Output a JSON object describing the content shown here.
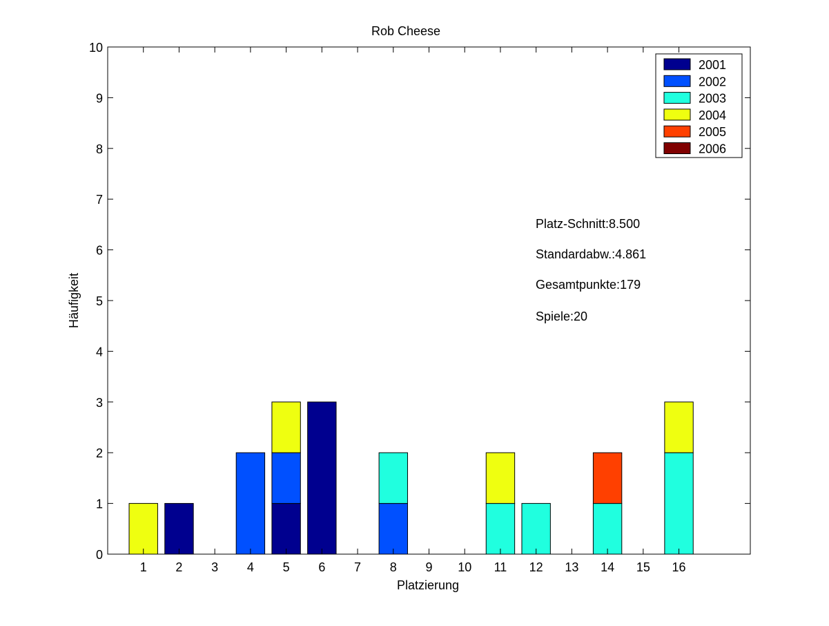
{
  "chart_data": {
    "type": "bar",
    "stacked": true,
    "title": "Rob Cheese",
    "xlabel": "Platzierung",
    "ylabel": "Häufigkeit",
    "xlim": [
      0,
      18
    ],
    "ylim": [
      0,
      10
    ],
    "yticks": [
      0,
      1,
      2,
      3,
      4,
      5,
      6,
      7,
      8,
      9,
      10
    ],
    "categories": [
      "1",
      "2",
      "3",
      "4",
      "5",
      "6",
      "7",
      "8",
      "9",
      "10",
      "11",
      "12",
      "13",
      "14",
      "15",
      "16"
    ],
    "series": [
      {
        "name": "2001",
        "color": "#00008f",
        "values": [
          0,
          1,
          0,
          0,
          1,
          3,
          0,
          0,
          0,
          0,
          0,
          0,
          0,
          0,
          0,
          0
        ]
      },
      {
        "name": "2002",
        "color": "#0050ff",
        "values": [
          0,
          0,
          0,
          2,
          1,
          0,
          0,
          1,
          0,
          0,
          0,
          0,
          0,
          0,
          0,
          0
        ]
      },
      {
        "name": "2003",
        "color": "#20ffdf",
        "values": [
          0,
          0,
          0,
          0,
          0,
          0,
          0,
          1,
          0,
          0,
          1,
          1,
          0,
          1,
          0,
          2
        ]
      },
      {
        "name": "2004",
        "color": "#efff10",
        "values": [
          1,
          0,
          0,
          0,
          1,
          0,
          0,
          0,
          0,
          0,
          1,
          0,
          0,
          0,
          0,
          1
        ]
      },
      {
        "name": "2005",
        "color": "#ff4000",
        "values": [
          0,
          0,
          0,
          0,
          0,
          0,
          0,
          0,
          0,
          0,
          0,
          0,
          0,
          1,
          0,
          0
        ]
      },
      {
        "name": "2006",
        "color": "#800000",
        "values": [
          0,
          0,
          0,
          0,
          0,
          0,
          0,
          0,
          0,
          0,
          0,
          0,
          0,
          0,
          0,
          0
        ]
      }
    ],
    "legend_position": "top-right",
    "annotations": [
      "Platz-Schnitt:8.500",
      "Standardabw.:4.861",
      "Gesamtpunkte:179",
      "Spiele:20"
    ],
    "grid": false
  }
}
